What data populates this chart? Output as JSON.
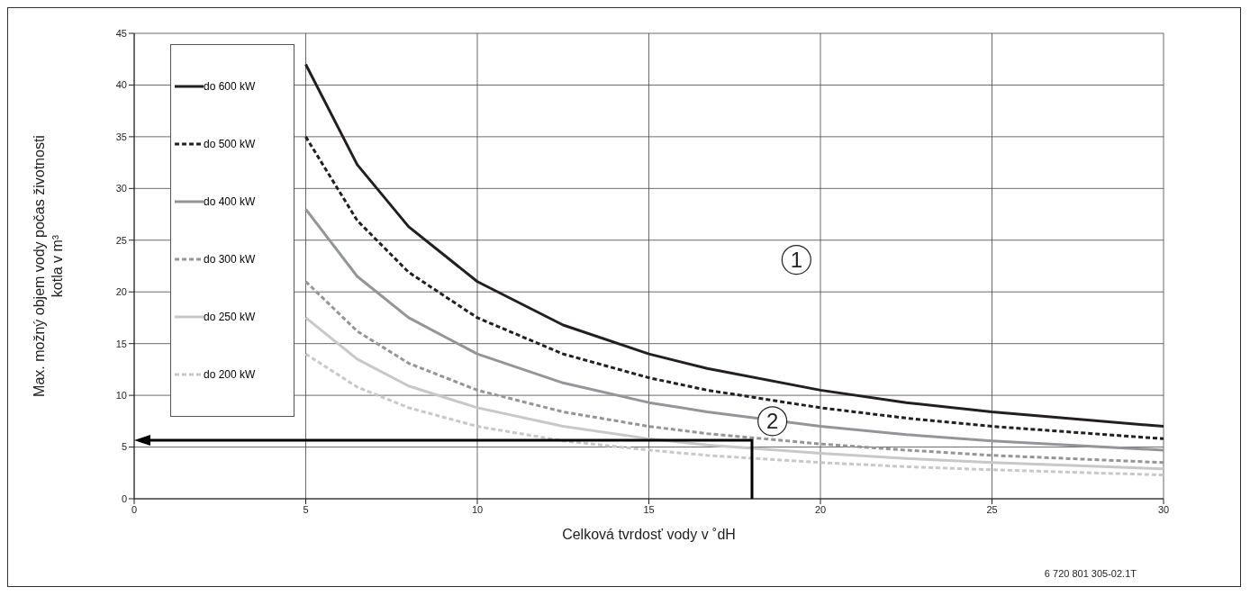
{
  "chart_data": {
    "type": "line",
    "xlabel": "Celková tvrdosť vody v ˚dH",
    "ylabel": "Max. možný objem vody počas životnosti kotla v m³",
    "x": [
      5,
      6.5,
      8,
      10,
      12.5,
      15,
      16.7,
      20,
      22.5,
      25,
      30
    ],
    "series": [
      {
        "name": "do 600 kW",
        "color": "#231f20",
        "line_style": "solid",
        "values": [
          42,
          32.3,
          26.3,
          21,
          16.8,
          14,
          12.6,
          10.5,
          9.3,
          8.4,
          7
        ]
      },
      {
        "name": "do 500 kW",
        "color": "#231f20",
        "line_style": "dashed",
        "values": [
          35,
          26.9,
          21.9,
          17.5,
          14,
          11.7,
          10.5,
          8.8,
          7.8,
          7,
          5.8
        ]
      },
      {
        "name": "do 400 kW",
        "color": "#939598",
        "line_style": "solid",
        "values": [
          28,
          21.5,
          17.5,
          14,
          11.2,
          9.3,
          8.4,
          7,
          6.2,
          5.6,
          4.7
        ]
      },
      {
        "name": "do 300 kW",
        "color": "#939598",
        "line_style": "dashed",
        "values": [
          21,
          16.2,
          13.1,
          10.5,
          8.4,
          7,
          6.3,
          5.3,
          4.7,
          4.2,
          3.5
        ]
      },
      {
        "name": "do 250 kW",
        "color": "#c7c8ca",
        "line_style": "solid",
        "values": [
          17.5,
          13.5,
          10.9,
          8.8,
          7,
          5.8,
          5.2,
          4.4,
          3.9,
          3.5,
          2.9
        ]
      },
      {
        "name": "do 200 kW",
        "color": "#c7c8ca",
        "line_style": "dashed",
        "values": [
          14,
          10.8,
          8.8,
          7,
          5.6,
          4.7,
          4.2,
          3.5,
          3.1,
          2.8,
          2.3
        ]
      }
    ],
    "xlim": [
      0,
      30
    ],
    "xticks": [
      0,
      5,
      10,
      15,
      20,
      25,
      30
    ],
    "ylim": [
      0,
      45
    ],
    "yticks": [
      0,
      5,
      10,
      15,
      20,
      25,
      30,
      35,
      40,
      45
    ],
    "grid": true,
    "legend": "top left",
    "marker": "none",
    "annotations": [
      {
        "text": "1",
        "x": 19.3,
        "y": 23.1
      },
      {
        "text": "2",
        "x": 18.6,
        "y": 7.5
      },
      "6 720 801 305-02.1T"
    ]
  }
}
